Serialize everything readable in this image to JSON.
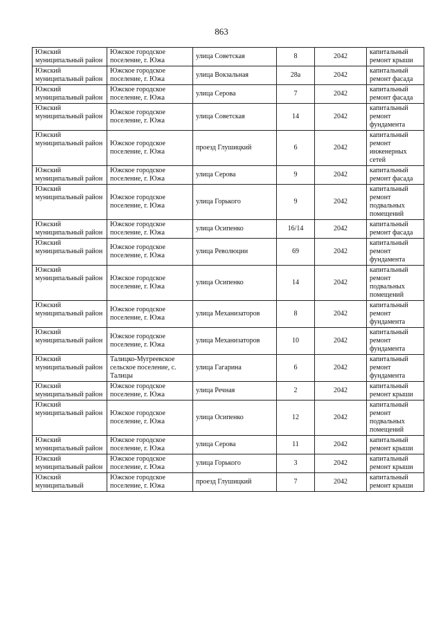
{
  "page_number": "863",
  "rows": [
    [
      "Южский муниципальный район",
      "Южское городское поселение, г. Южа",
      "улица Советская",
      "8",
      "2042",
      "капитальный ремонт крыши"
    ],
    [
      "Южский муниципальный район",
      "Южское городское поселение, г. Южа",
      "улица Вокзальная",
      "28а",
      "2042",
      "капитальный ремонт фасада"
    ],
    [
      "Южский муниципальный район",
      "Южское городское поселение, г. Южа",
      "улица Серова",
      "7",
      "2042",
      "капитальный ремонт фасада"
    ],
    [
      "Южский муниципальный район",
      "Южское городское поселение, г. Южа",
      "улица Советская",
      "14",
      "2042",
      "капитальный ремонт фундамента"
    ],
    [
      "Южский муниципальный район",
      "Южское городское поселение, г. Южа",
      "проезд Глушицкий",
      "6",
      "2042",
      "капитальный ремонт инженерных сетей"
    ],
    [
      "Южский муниципальный район",
      "Южское городское поселение, г. Южа",
      "улица Серова",
      "9",
      "2042",
      "капитальный ремонт фасада"
    ],
    [
      "Южский муниципальный район",
      "Южское городское поселение, г. Южа",
      "улица Горького",
      "9",
      "2042",
      "капитальный ремонт подвальных помещений"
    ],
    [
      "Южский муниципальный район",
      "Южское городское поселение, г. Южа",
      "улица Осипенко",
      "16/14",
      "2042",
      "капитальный ремонт фасада"
    ],
    [
      "Южский муниципальный район",
      "Южское городское поселение, г. Южа",
      "улица Революции",
      "69",
      "2042",
      "капитальный ремонт фундамента"
    ],
    [
      "Южский муниципальный район",
      "Южское городское поселение, г. Южа",
      "улица Осипенко",
      "14",
      "2042",
      "капитальный ремонт подвальных помещений"
    ],
    [
      "Южский муниципальный район",
      "Южское городское поселение, г. Южа",
      "улица Механизаторов",
      "8",
      "2042",
      "капитальный ремонт фундамента"
    ],
    [
      "Южский муниципальный район",
      "Южское городское поселение, г. Южа",
      "улица Механизаторов",
      "10",
      "2042",
      "капитальный ремонт фундамента"
    ],
    [
      "Южский муниципальный район",
      "Талицко-Мугреевское сельское поселение, с. Талицы",
      "улица Гагарина",
      "6",
      "2042",
      "капитальный ремонт фундамента"
    ],
    [
      "Южский муниципальный район",
      "Южское городское поселение, г. Южа",
      "улица Речная",
      "2",
      "2042",
      "капитальный ремонт крыши"
    ],
    [
      "Южский муниципальный район",
      "Южское городское поселение, г. Южа",
      "улица Осипенко",
      "12",
      "2042",
      "капитальный ремонт подвальных помещений"
    ],
    [
      "Южский муниципальный район",
      "Южское городское поселение, г. Южа",
      "улица Серова",
      "11",
      "2042",
      "капитальный ремонт крыши"
    ],
    [
      "Южский муниципальный район",
      "Южское городское поселение, г. Южа",
      "улица Горького",
      "3",
      "2042",
      "капитальный ремонт крыши"
    ],
    [
      "Южский муниципальный",
      "Южское городское поселение, г. Южа",
      "проезд Глушицкий",
      "7",
      "2042",
      "капитальный ремонт крыши"
    ]
  ]
}
